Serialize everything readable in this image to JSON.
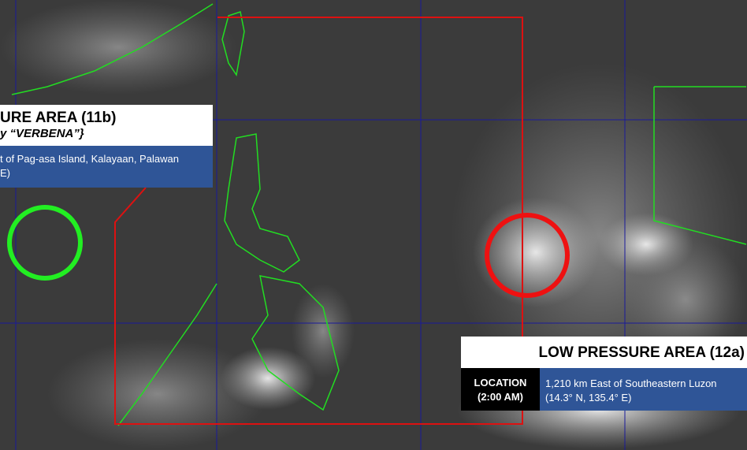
{
  "map": {
    "grid_color": "#1a1a9a",
    "coastline_color": "#22dd22",
    "area_of_responsibility_color": "#dd1111"
  },
  "systems": [
    {
      "title": "URE AREA (11b)",
      "subtitle": "y “VERBENA”}",
      "location_line1": "t of Pag-asa Island, Kalayaan, Palawan",
      "location_line2": "E)",
      "marker_color": "#22ee22"
    },
    {
      "title": "LOW PRESSURE AREA (12a)",
      "location_label_line1": "LOCATION",
      "location_label_line2": "(2:00 AM)",
      "location_line1": "1,210 km East of Southeastern Luzon",
      "location_line2": "(14.3° N, 135.4° E)",
      "marker_color": "#ee1111"
    }
  ]
}
